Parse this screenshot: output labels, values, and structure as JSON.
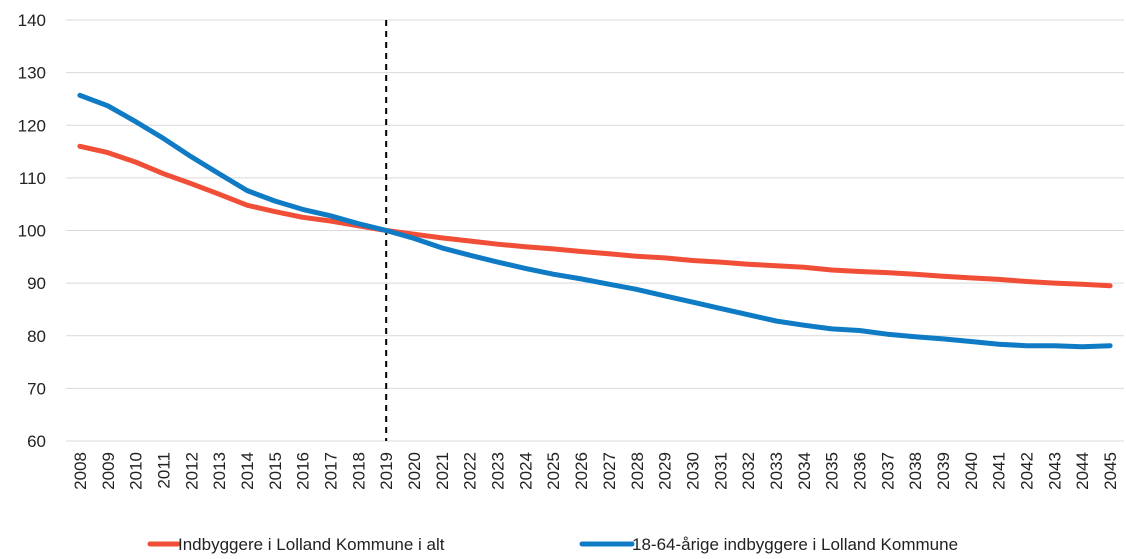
{
  "chart_data": {
    "type": "line",
    "title": "",
    "xlabel": "",
    "ylabel": "",
    "ylim": [
      60,
      140
    ],
    "y_ticks": [
      "60",
      "70",
      "80",
      "90",
      "100",
      "110",
      "120",
      "130",
      "140"
    ],
    "grid": "horizontal",
    "legend_position": "bottom",
    "reference_line": {
      "x": "2019",
      "style": "dashed",
      "color": "#000000"
    },
    "categories": [
      "2008",
      "2009",
      "2010",
      "2011",
      "2012",
      "2013",
      "2014",
      "2015",
      "2016",
      "2017",
      "2018",
      "2019",
      "2020",
      "2021",
      "2022",
      "2023",
      "2024",
      "2025",
      "2026",
      "2027",
      "2028",
      "2029",
      "2030",
      "2031",
      "2032",
      "2033",
      "2034",
      "2035",
      "2036",
      "2037",
      "2038",
      "2039",
      "2040",
      "2041",
      "2042",
      "2043",
      "2044",
      "2045"
    ],
    "series": [
      {
        "name": "Indbyggere i Lolland Kommune i alt",
        "color": "#f04e37",
        "values": [
          116.0,
          114.8,
          113.0,
          110.8,
          108.9,
          106.9,
          104.8,
          103.6,
          102.5,
          101.8,
          100.9,
          100.0,
          99.3,
          98.6,
          98.0,
          97.4,
          96.9,
          96.5,
          96.0,
          95.6,
          95.1,
          94.8,
          94.3,
          94.0,
          93.6,
          93.3,
          93.0,
          92.5,
          92.2,
          92.0,
          91.7,
          91.3,
          91.0,
          90.7,
          90.3,
          90.0,
          89.8,
          89.5
        ]
      },
      {
        "name": "18-64-årige indbyggere i Lolland Kommune",
        "color": "#0f7bc4",
        "values": [
          125.7,
          123.7,
          120.7,
          117.5,
          114.0,
          110.8,
          107.6,
          105.6,
          104.0,
          102.8,
          101.3,
          100.0,
          98.5,
          96.7,
          95.3,
          94.0,
          92.8,
          91.7,
          90.8,
          89.8,
          88.8,
          87.6,
          86.4,
          85.2,
          84.0,
          82.8,
          82.0,
          81.3,
          81.0,
          80.3,
          79.8,
          79.4,
          78.9,
          78.4,
          78.1,
          78.1,
          77.9,
          78.1
        ]
      }
    ]
  }
}
